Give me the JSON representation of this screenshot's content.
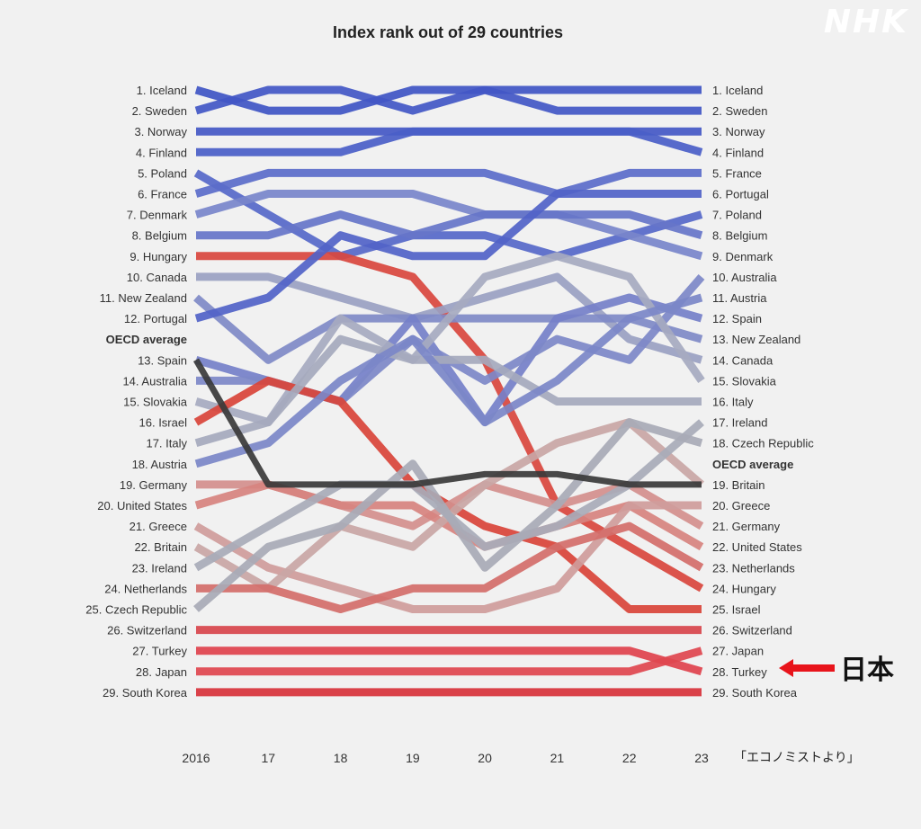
{
  "watermark": "NHK",
  "annotation": {
    "text": "日本",
    "target": "27. Japan",
    "color": "#e8141b"
  },
  "source_note": "「エコノミストより」",
  "chart_data": {
    "type": "line",
    "title": "Index rank out of 29 countries",
    "x": [
      "2016",
      "17",
      "18",
      "19",
      "20",
      "21",
      "22",
      "23"
    ],
    "ylim": [
      1,
      30
    ],
    "y_direction": "rank (1 at top)",
    "left_labels": [
      "1. Iceland",
      "2. Sweden",
      "3. Norway",
      "4. Finland",
      "5. Poland",
      "6. France",
      "7. Denmark",
      "8. Belgium",
      "9. Hungary",
      "10. Canada",
      "11. New Zealand",
      "12. Portugal",
      "OECD average",
      "13. Spain",
      "14. Australia",
      "15. Slovakia",
      "16. Israel",
      "17. Italy",
      "18. Austria",
      "19. Germany",
      "20. United States",
      "21. Greece",
      "22. Britain",
      "23. Ireland",
      "24. Netherlands",
      "25. Czech Republic",
      "26. Switzerland",
      "27. Turkey",
      "28. Japan",
      "29. South Korea"
    ],
    "right_labels": [
      "1. Iceland",
      "2. Sweden",
      "3. Norway",
      "4. Finland",
      "5. France",
      "6. Portugal",
      "7. Poland",
      "8. Belgium",
      "9. Denmark",
      "10. Australia",
      "11. Austria",
      "12. Spain",
      "13. New Zealand",
      "14. Canada",
      "15. Slovakia",
      "16. Italy",
      "17. Ireland",
      "18. Czech Republic",
      "OECD average",
      "19. Britain",
      "20. Greece",
      "21. Germany",
      "22. United States",
      "23. Netherlands",
      "24. Hungary",
      "25. Israel",
      "26. Switzerland",
      "27. Japan",
      "28. Turkey",
      "29. South Korea"
    ],
    "series": [
      {
        "name": "Iceland",
        "values": [
          1,
          2,
          2,
          1,
          1,
          1,
          1,
          1
        ],
        "color": "#3f55c4"
      },
      {
        "name": "Sweden",
        "values": [
          2,
          1,
          1,
          2,
          1,
          2,
          2,
          2
        ],
        "color": "#4257c5"
      },
      {
        "name": "Norway",
        "values": [
          3,
          3,
          3,
          3,
          3,
          3,
          3,
          3
        ],
        "color": "#4458c6"
      },
      {
        "name": "Finland",
        "values": [
          4,
          4,
          4,
          3,
          3,
          3,
          3,
          4
        ],
        "color": "#4a5ec8"
      },
      {
        "name": "Poland",
        "values": [
          5,
          7,
          9,
          8,
          8,
          9,
          8,
          7
        ],
        "color": "#5668c9"
      },
      {
        "name": "France",
        "values": [
          6,
          5,
          5,
          5,
          5,
          6,
          5,
          5
        ],
        "color": "#5b6dca"
      },
      {
        "name": "Denmark",
        "values": [
          7,
          6,
          6,
          6,
          7,
          7,
          8,
          9
        ],
        "color": "#7886cb"
      },
      {
        "name": "Belgium",
        "values": [
          8,
          8,
          7,
          8,
          7,
          7,
          7,
          8
        ],
        "color": "#6675c9"
      },
      {
        "name": "Hungary",
        "values": [
          9,
          9,
          9,
          10,
          14,
          20,
          22,
          24
        ],
        "color": "#d9473e"
      },
      {
        "name": "Canada",
        "values": [
          10,
          10,
          11,
          12,
          11,
          10,
          13,
          14
        ],
        "color": "#9aa1c2"
      },
      {
        "name": "New Zealand",
        "values": [
          11,
          13,
          12,
          12,
          12,
          12,
          12,
          13
        ],
        "color": "#7f8ac7"
      },
      {
        "name": "Portugal",
        "values": [
          12,
          11,
          8,
          9,
          9,
          6,
          6,
          6
        ],
        "color": "#5163c8"
      },
      {
        "name": "Spain",
        "values": [
          13,
          14,
          15,
          12,
          16,
          12,
          11,
          12
        ],
        "color": "#7580c9"
      },
      {
        "name": "Australia",
        "values": [
          14,
          14,
          15,
          13,
          15,
          13,
          14,
          10
        ],
        "color": "#7d88c8"
      },
      {
        "name": "Slovakia",
        "values": [
          15,
          16,
          12,
          14,
          10,
          9,
          10,
          15
        ],
        "color": "#a6aac0"
      },
      {
        "name": "Israel",
        "values": [
          16,
          14,
          15,
          19,
          21,
          22,
          25,
          25
        ],
        "color": "#d9443a"
      },
      {
        "name": "Italy",
        "values": [
          17,
          16,
          13,
          14,
          14,
          16,
          16,
          16
        ],
        "color": "#a5a9bd"
      },
      {
        "name": "Austria",
        "values": [
          18,
          17,
          14,
          13,
          16,
          15,
          12,
          11
        ],
        "color": "#7b87c8"
      },
      {
        "name": "Germany",
        "values": [
          19,
          19,
          20,
          21,
          19,
          20,
          19,
          21
        ],
        "color": "#d48f8d"
      },
      {
        "name": "United States",
        "values": [
          20,
          19,
          20,
          20,
          22,
          21,
          20,
          22
        ],
        "color": "#d7837f"
      },
      {
        "name": "Greece",
        "values": [
          21,
          23,
          24,
          25,
          25,
          24,
          20,
          20
        ],
        "color": "#cf9c9b"
      },
      {
        "name": "Britain",
        "values": [
          22,
          24,
          21,
          22,
          19,
          17,
          17,
          19
        ],
        "color": "#c9a6a5"
      },
      {
        "name": "Ireland",
        "values": [
          23,
          21,
          19,
          19,
          22,
          21,
          19,
          17
        ],
        "color": "#a8abb9"
      },
      {
        "name": "Netherlands",
        "values": [
          24,
          24,
          25,
          24,
          24,
          22,
          21,
          23
        ],
        "color": "#d46e6a"
      },
      {
        "name": "Czech Republic",
        "values": [
          25,
          22,
          21,
          18,
          23,
          20,
          17,
          18
        ],
        "color": "#a8aab6"
      },
      {
        "name": "Switzerland",
        "values": [
          26,
          26,
          26,
          26,
          26,
          26,
          26,
          26
        ],
        "color": "#d8454c"
      },
      {
        "name": "Turkey",
        "values": [
          27,
          27,
          27,
          27,
          27,
          27,
          27,
          28
        ],
        "color": "#e0424d"
      },
      {
        "name": "Japan",
        "values": [
          28,
          28,
          28,
          28,
          28,
          28,
          28,
          27
        ],
        "color": "#e0464f"
      },
      {
        "name": "South Korea",
        "values": [
          29,
          29,
          29,
          29,
          29,
          29,
          29,
          29
        ],
        "color": "#d8323b"
      },
      {
        "name": "OECD average",
        "values": [
          13,
          19,
          19,
          19,
          18.5,
          18.5,
          19,
          19
        ],
        "color": "#3a3a3a"
      }
    ]
  }
}
